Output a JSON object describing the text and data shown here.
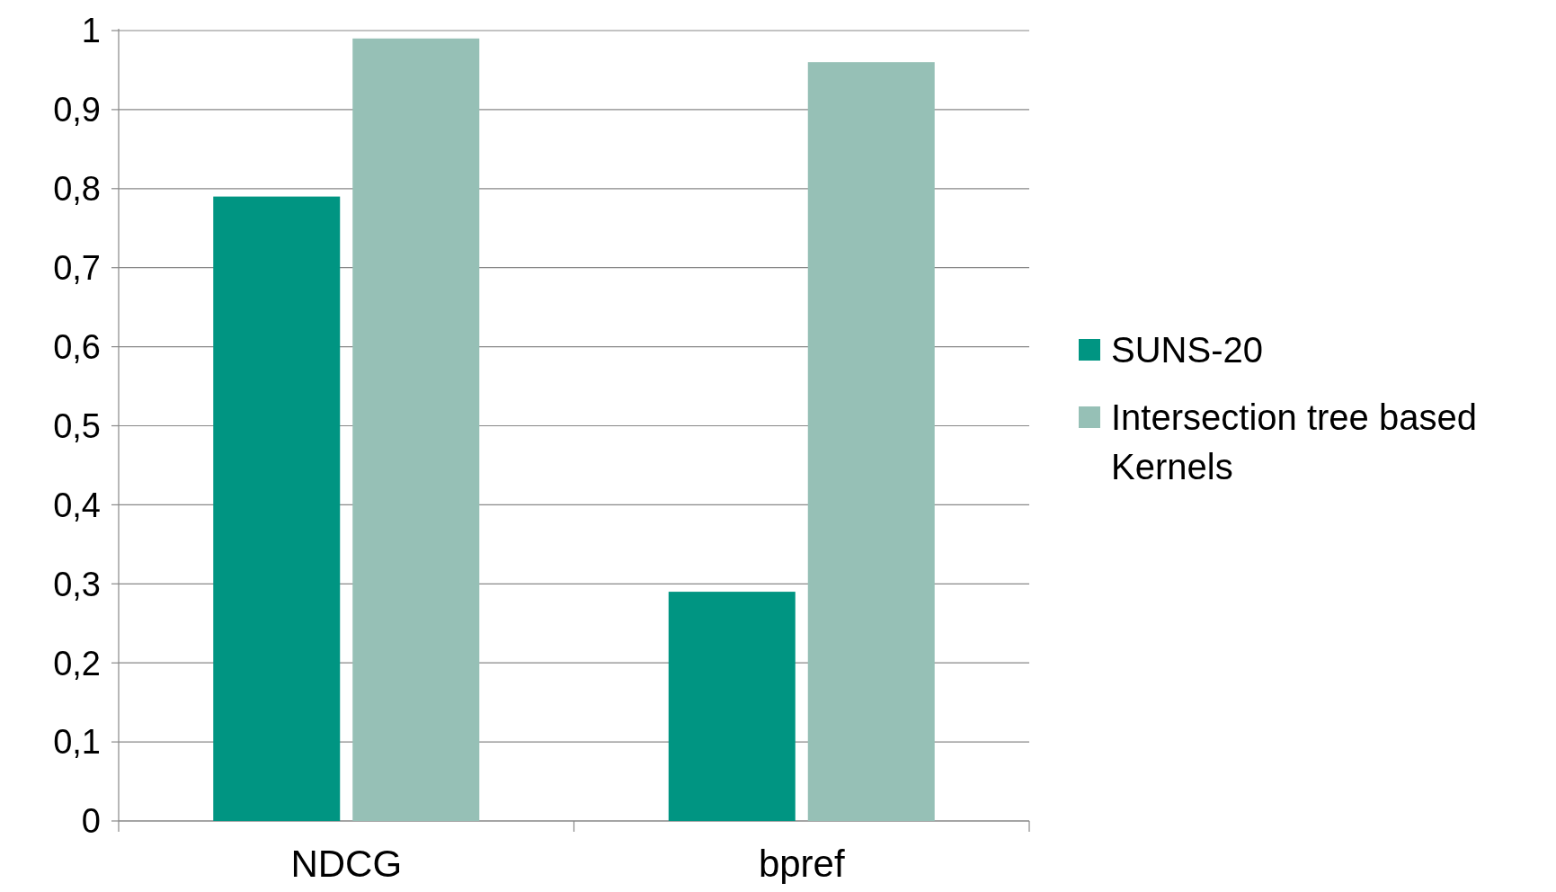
{
  "chart_data": {
    "type": "bar",
    "categories": [
      "NDCG",
      "bpref"
    ],
    "series": [
      {
        "name": "SUNS-20",
        "color": "#009582",
        "values": [
          0.79,
          0.29
        ]
      },
      {
        "name": "Intersection tree based Kernels",
        "color": "#96c0b6",
        "values": [
          0.99,
          0.96
        ]
      }
    ],
    "ylim": [
      0,
      1
    ],
    "yticks": [
      0,
      {
        "value": 0.1,
        "label": "0,1"
      },
      {
        "value": 0.2,
        "label": "0,2"
      },
      {
        "value": 0.3,
        "label": "0,3"
      },
      {
        "value": 0.4,
        "label": "0,4"
      },
      {
        "value": 0.5,
        "label": "0,5"
      },
      {
        "value": 0.6,
        "label": "0,6"
      },
      {
        "value": 0.7,
        "label": "0,7"
      },
      {
        "value": 0.8,
        "label": "0,8"
      },
      {
        "value": 0.9,
        "label": "0,9"
      },
      1
    ],
    "grid": "y",
    "legend": "right"
  }
}
